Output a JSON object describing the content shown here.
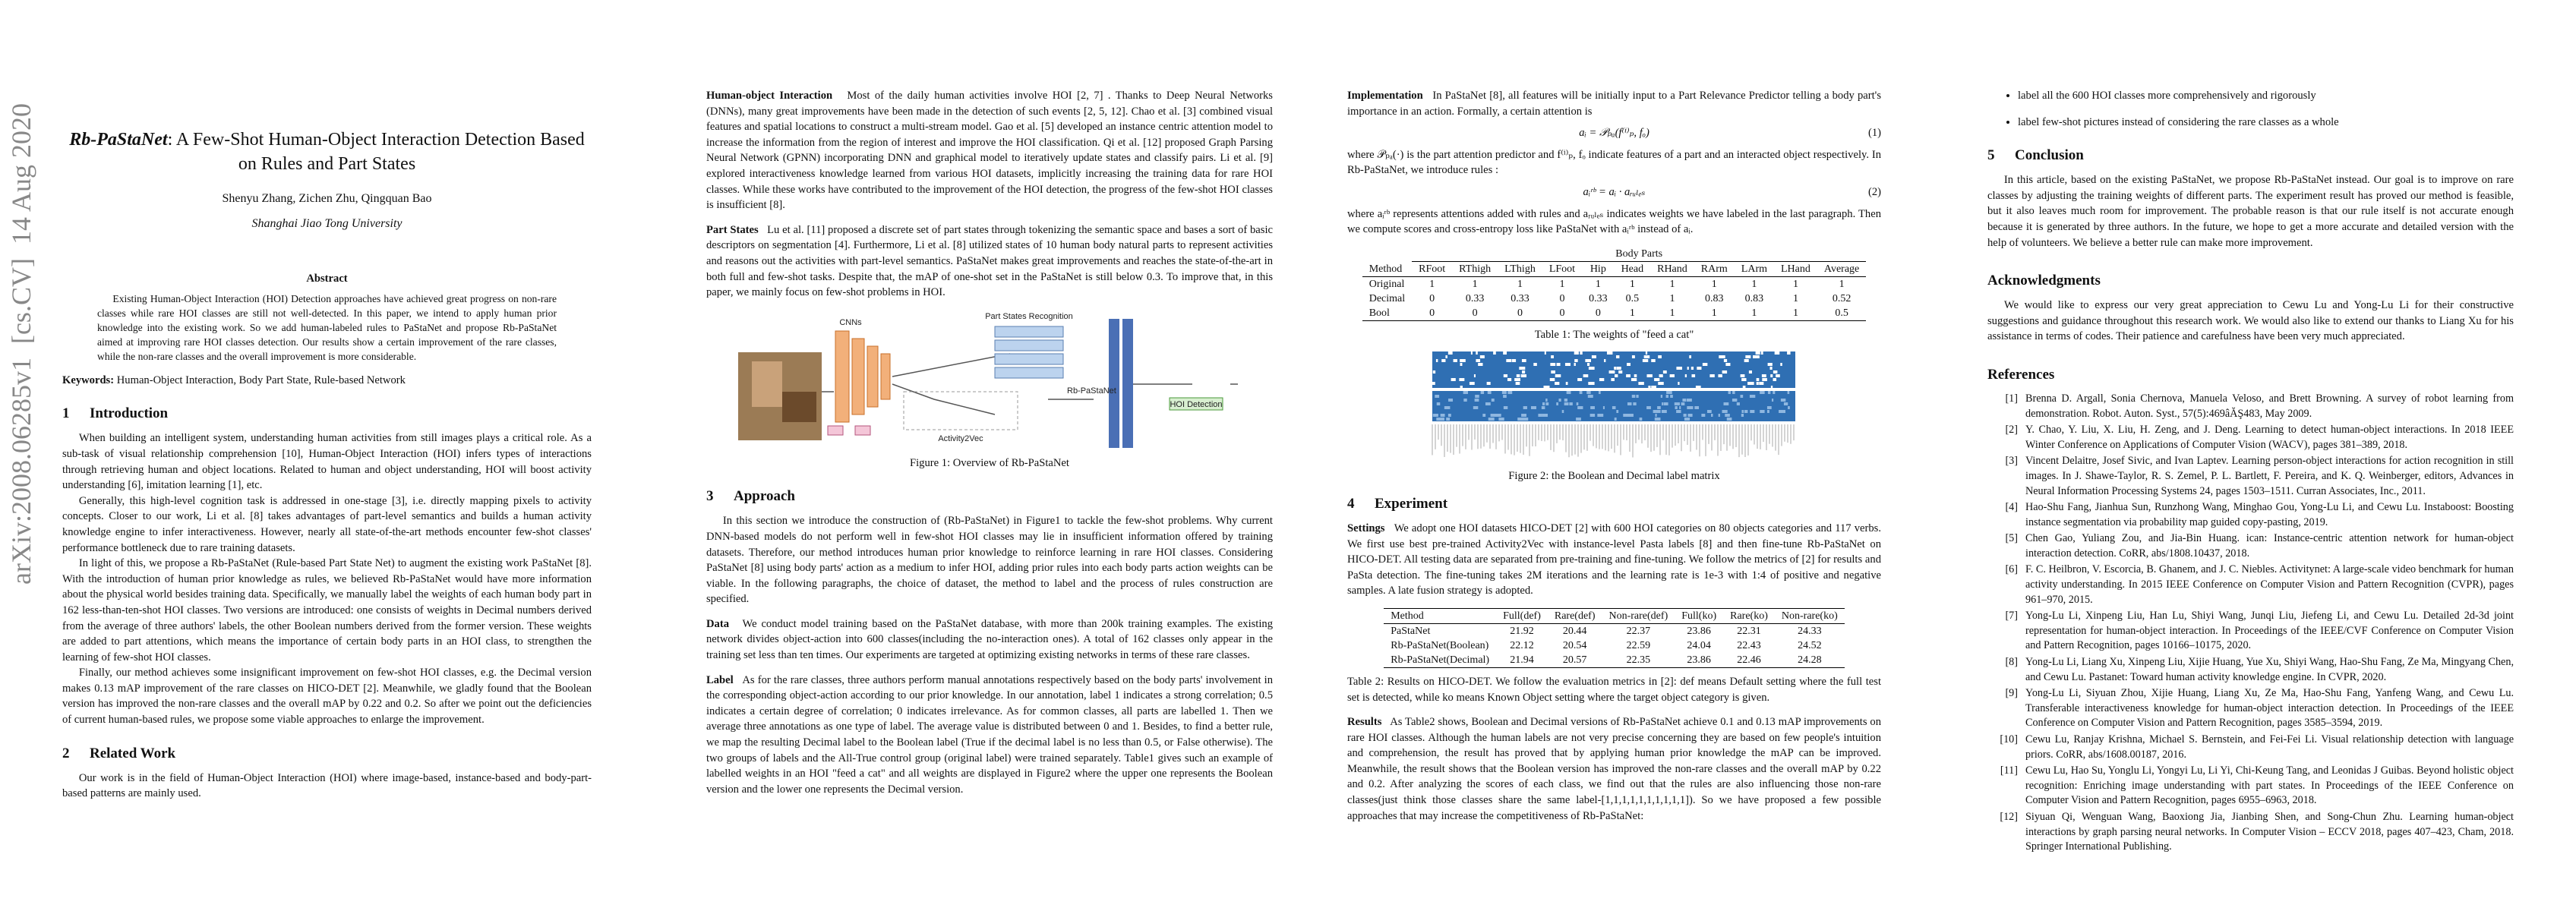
{
  "arxiv_id": "arXiv:2008.06285v1  [cs.CV]  14 Aug 2020",
  "header": {
    "title_name": "Rb-PaStaNet",
    "title_rest": ": A Few-Shot Human-Object Interaction Detection Based on Rules and Part States",
    "authors": "Shenyu Zhang, Zichen Zhu, Qingquan Bao",
    "affiliation": "Shanghai Jiao Tong University"
  },
  "abstract": {
    "heading": "Abstract",
    "text": "Existing Human-Object Interaction (HOI) Detection approaches have achieved great progress on non-rare classes while rare HOI classes are still not well-detected. In this paper, we intend to apply human prior knowledge into the existing work. So we add human-labeled rules to PaStaNet and propose Rb-PaStaNet aimed at improving rare HOI classes detection. Our results show a certain improvement of the rare classes, while the non-rare classes and the overall improvement is more considerable."
  },
  "keywords": {
    "label": "Keywords:",
    "text": "Human-Object Interaction, Body Part State, Rule-based Network"
  },
  "intro": {
    "number": "1",
    "title": "Introduction",
    "paragraphs": [
      "When building an intelligent system, understanding human activities from still images plays a critical role. As a sub-task of visual relationship comprehension [10], Human-Object Interaction (HOI) infers types of interactions through retrieving human and object locations. Related to human and object understanding, HOI will boost activity understanding [6], imitation learning [1], etc.",
      "Generally, this high-level cognition task is addressed in one-stage [3], i.e. directly mapping pixels to activity concepts. Closer to our work, Li et al. [8] takes advantages of part-level semantics and builds a human activity knowledge engine to infer interactiveness. However, nearly all state-of-the-art methods encounter few-shot classes' performance bottleneck due to rare training datasets.",
      "In light of this, we propose a Rb-PaStaNet (Rule-based Part State Net) to augment the existing work PaStaNet [8]. With the introduction of human prior knowledge as rules, we believed Rb-PaStaNet would have more information about the physical world besides training data. Specifically, we manually label the weights of each human body part in 162 less-than-ten-shot HOI classes. Two versions are introduced: one consists of weights in Decimal numbers derived from the average of three authors' labels, the other Boolean numbers derived from the former version. These weights are added to part attentions, which means the importance of certain body parts in an HOI class, to strengthen the learning of few-shot HOI classes.",
      "Finally, our method achieves some insignificant improvement on few-shot HOI classes, e.g. the Decimal version makes 0.13 mAP improvement of the rare classes on HICO-DET [2]. Meanwhile, we gladly found that the Boolean version has improved the non-rare classes and the overall mAP by 0.22 and 0.2. So after we point out the deficiencies of current human-based rules, we propose some viable approaches to enlarge the improvement."
    ]
  },
  "related": {
    "number": "2",
    "title": "Related Work",
    "intro": "Our work is in the field of Human-Object Interaction (HOI) where image-based, instance-based and body-part-based patterns are mainly used.",
    "hoi": {
      "lead": "Human-object Interaction",
      "text": "Most of the daily human activities involve HOI [2, 7] . Thanks to Deep Neural Networks (DNNs), many great improvements have been made in the detection of such events [2, 5, 12]. Chao et al. [3] combined visual features and spatial locations to construct a multi-stream model. Gao et al. [5] developed an instance centric attention model to increase the information from the region of interest and improve the HOI classification. Qi et al. [12] proposed Graph Parsing Neural Network (GPNN) incorporating DNN and graphical model to iteratively update states and classify pairs. Li et al. [9] explored interactiveness knowledge learned from various HOI datasets, implicitly increasing the training data for rare HOI classes. While these works have contributed to the improvement of the HOI detection, the progress of the few-shot HOI classes is insufficient [8]."
    },
    "part_states": {
      "lead": "Part States",
      "text": "Lu et al. [11] proposed a discrete set of part states through tokenizing the semantic space and bases a sort of basic descriptors on segmentation [4]. Furthermore, Li et al. [8] utilized states of 10 human body natural parts to represent activities and reasons out the activities with part-level semantics. PaStaNet makes great improvements and reaches the state-of-the-art in both full and few-shot tasks. Despite that, the mAP of one-shot set in the PaStaNet is still below 0.3. To improve that, in this paper, we mainly focus on few-shot problems in HOI."
    }
  },
  "figure1": {
    "labels": [
      "CNNs",
      "Part States Recognition",
      "Rb-PaStaNet",
      "HOI Detection",
      "Activity2Vec"
    ],
    "caption": "Figure 1: Overview of Rb-PaStaNet"
  },
  "approach": {
    "number": "3",
    "title": "Approach",
    "intro": "In this section we introduce the construction of (Rb-PaStaNet) in Figure1 to tackle the few-shot problems. Why current DNN-based models do not perform well in few-shot HOI classes may lie in insufficient information offered by training datasets. Therefore, our method introduces human prior knowledge to reinforce learning in rare HOI classes. Considering PaStaNet [8] using body parts' action as a medium to infer HOI, adding prior rules into each body parts action weights can be viable. In the following paragraphs, the choice of dataset, the method to label and the process of rules construction are specified.",
    "data": {
      "lead": "Data",
      "text": "We conduct model training based on the PaStaNet database, with more than 200k training examples. The existing network divides object-action into 600 classes(including the no-interaction ones). A total of 162 classes only appear in the training set less than ten times. Our experiments are targeted at optimizing existing networks in terms of these rare classes."
    },
    "label": {
      "lead": "Label",
      "text": "As for the rare classes, three authors perform manual annotations respectively based on the body parts' involvement in the corresponding object-action according to our prior knowledge. In our annotation, label 1 indicates a strong correlation; 0.5 indicates a certain degree of correlation; 0 indicates irrelevance. As for common classes, all parts are labelled 1. Then we average three annotations as one type of label. The average value is distributed between 0 and 1. Besides, to find a better rule, we map the resulting Decimal label to the Boolean label (True if the decimal label is no less than 0.5, or False otherwise). The two groups of labels and the All-True control group (original label) were trained separately. Table1 gives such an example of labelled weights in an HOI \"feed a cat\" and all weights are displayed in Figure2 where the upper one represents the Boolean version and the lower one represents the Decimal version."
    },
    "implementation": {
      "lead": "Implementation",
      "text": "In PaStaNet [8], all features will be initially input to a Part Relevance Predictor telling a body part's importance in an action. Formally, a certain attention is"
    },
    "equation1": {
      "formula": "aᵢ = 𝒫ₚₐ(f⁽ⁱ⁾ₚ, fₒ)",
      "number": "(1)"
    },
    "after_eq1": "where 𝒫ₚₐ(·) is the part attention predictor and f⁽ⁱ⁾ₚ, fₒ indicate features of a part and an interacted object respectively. In Rb-PaStaNet, we introduce rules :",
    "equation2": {
      "formula": "aᵢʳᵇ = aᵢ · aᵣᵤₗₑₛ",
      "number": "(2)"
    },
    "after_eq2": "where aᵢʳᵇ represents attentions added with rules and aᵣᵤₗₑₛ indicates weights we have labeled in the last paragraph. Then we compute scores and cross-entropy loss like PaStaNet with aᵢʳᵇ instead of aᵢ."
  },
  "table1": {
    "group_header": "Body Parts",
    "columns": [
      "Method",
      "RFoot",
      "RThigh",
      "LThigh",
      "LFoot",
      "Hip",
      "Head",
      "RHand",
      "RArm",
      "LArm",
      "LHand",
      "Average"
    ],
    "rows": [
      {
        "label": "Original",
        "values": [
          1,
          1,
          1,
          1,
          1,
          1,
          1,
          1,
          1,
          1,
          1
        ]
      },
      {
        "label": "Decimal",
        "values": [
          0,
          0.33,
          0.33,
          0,
          0.33,
          0.5,
          1,
          0.83,
          0.83,
          1,
          0.52
        ]
      },
      {
        "label": "Bool",
        "values": [
          0,
          0,
          0,
          0,
          0,
          1,
          1,
          1,
          1,
          1,
          0.5
        ]
      }
    ],
    "caption": "Table 1: The weights of \"feed a cat\""
  },
  "figure2": {
    "caption": "Figure 2: the Boolean and Decimal label matrix"
  },
  "experiment": {
    "number": "4",
    "title": "Experiment",
    "settings": {
      "lead": "Settings",
      "text": "We adopt one HOI datasets HICO-DET [2] with 600 HOI categories on 80 objects categories and 117 verbs. We first use best pre-trained Activity2Vec with instance-level Pasta labels [8] and then fine-tune Rb-PaStaNet on HICO-DET. All testing data are separated from pre-training and fine-tuning. We follow the metrics of [2] for results and PaSta detection. The fine-tuning takes 2M iterations and the learning rate is 1e-3 with 1:4 of positive and negative samples. A late fusion strategy is adopted."
    },
    "results": {
      "lead": "Results",
      "text": "As Table2 shows, Boolean and Decimal versions of Rb-PaStaNet achieve 0.1 and 0.13 mAP improvements on rare HOI classes. Although the human labels are not very precise concerning they are based on few people's intuition and comprehension, the result has proved that by applying human prior knowledge the mAP can be improved. Meanwhile, the result shows that the Boolean version has improved the non-rare classes and the overall mAP by 0.22 and 0.2. After analyzing the scores of each class, we find out that the rules are also influencing those non-rare classes(just think those classes share the same label-[1,1,1,1,1,1,1,1,1,1]). So we have proposed a few possible approaches that may increase the competitiveness of Rb-PaStaNet:"
    },
    "bullets": [
      "label all the 600 HOI classes more comprehensively and rigorously",
      "label few-shot pictures instead of considering the rare classes as a whole"
    ]
  },
  "table2": {
    "columns": [
      "Method",
      "Full(def)",
      "Rare(def)",
      "Non-rare(def)",
      "Full(ko)",
      "Rare(ko)",
      "Non-rare(ko)"
    ],
    "rows": [
      {
        "label": "PaStaNet",
        "values": [
          21.92,
          20.44,
          22.37,
          23.86,
          22.31,
          24.33
        ]
      },
      {
        "label": "Rb-PaStaNet(Boolean)",
        "values": [
          22.12,
          20.54,
          22.59,
          24.04,
          22.43,
          24.52
        ]
      },
      {
        "label": "Rb-PaStaNet(Decimal)",
        "values": [
          21.94,
          20.57,
          22.35,
          23.86,
          22.46,
          24.28
        ]
      }
    ],
    "caption": "Table 2: Results on HICO-DET. We follow the evaluation metrics in [2]: def means Default setting where the full test set is detected, while ko means Known Object setting where the target object category is given."
  },
  "conclusion": {
    "number": "5",
    "title": "Conclusion",
    "text": "In this article, based on the existing PaStaNet, we propose Rb-PaStaNet instead. Our goal is to improve on rare classes by adjusting the training weights of different parts. The experiment result has proved our method is feasible, but it also leaves much room for improvement. The probable reason is that our rule itself is not accurate enough because it is generated by three authors. In the future, we hope to get a more accurate and detailed version with the help of volunteers. We believe a better rule can make more improvement."
  },
  "acknowledgments": {
    "title": "Acknowledgments",
    "text": "We would like to express our very great appreciation to Cewu Lu and Yong-Lu Li for their constructive suggestions and guidance throughout this research work. We would also like to extend our thanks to Liang Xu for his assistance in terms of codes. Their patience and carefulness have been very much appreciated."
  },
  "references": {
    "title": "References",
    "items": [
      {
        "label": "[1]",
        "text": "Brenna D. Argall, Sonia Chernova, Manuela Veloso, and Brett Browning. A survey of robot learning from demonstration. Robot. Auton. Syst., 57(5):469âĂŞ483, May 2009."
      },
      {
        "label": "[2]",
        "text": "Y. Chao, Y. Liu, X. Liu, H. Zeng, and J. Deng. Learning to detect human-object interactions. In 2018 IEEE Winter Conference on Applications of Computer Vision (WACV), pages 381–389, 2018."
      },
      {
        "label": "[3]",
        "text": "Vincent Delaitre, Josef Sivic, and Ivan Laptev. Learning person-object interactions for action recognition in still images. In J. Shawe-Taylor, R. S. Zemel, P. L. Bartlett, F. Pereira, and K. Q. Weinberger, editors, Advances in Neural Information Processing Systems 24, pages 1503–1511. Curran Associates, Inc., 2011."
      },
      {
        "label": "[4]",
        "text": "Hao-Shu Fang, Jianhua Sun, Runzhong Wang, Minghao Gou, Yong-Lu Li, and Cewu Lu. Instaboost: Boosting instance segmentation via probability map guided copy-pasting, 2019."
      },
      {
        "label": "[5]",
        "text": "Chen Gao, Yuliang Zou, and Jia-Bin Huang. ican: Instance-centric attention network for human-object interaction detection. CoRR, abs/1808.10437, 2018."
      },
      {
        "label": "[6]",
        "text": "F. C. Heilbron, V. Escorcia, B. Ghanem, and J. C. Niebles. Activitynet: A large-scale video benchmark for human activity understanding. In 2015 IEEE Conference on Computer Vision and Pattern Recognition (CVPR), pages 961–970, 2015."
      },
      {
        "label": "[7]",
        "text": "Yong-Lu Li, Xinpeng Liu, Han Lu, Shiyi Wang, Junqi Liu, Jiefeng Li, and Cewu Lu. Detailed 2d-3d joint representation for human-object interaction. In Proceedings of the IEEE/CVF Conference on Computer Vision and Pattern Recognition, pages 10166–10175, 2020."
      },
      {
        "label": "[8]",
        "text": "Yong-Lu Li, Liang Xu, Xinpeng Liu, Xijie Huang, Yue Xu, Shiyi Wang, Hao-Shu Fang, Ze Ma, Mingyang Chen, and Cewu Lu. Pastanet: Toward human activity knowledge engine. In CVPR, 2020."
      },
      {
        "label": "[9]",
        "text": "Yong-Lu Li, Siyuan Zhou, Xijie Huang, Liang Xu, Ze Ma, Hao-Shu Fang, Yanfeng Wang, and Cewu Lu. Transferable interactiveness knowledge for human-object interaction detection. In Proceedings of the IEEE Conference on Computer Vision and Pattern Recognition, pages 3585–3594, 2019."
      },
      {
        "label": "[10]",
        "text": "Cewu Lu, Ranjay Krishna, Michael S. Bernstein, and Fei-Fei Li. Visual relationship detection with language priors. CoRR, abs/1608.00187, 2016."
      },
      {
        "label": "[11]",
        "text": "Cewu Lu, Hao Su, Yonglu Li, Yongyi Lu, Li Yi, Chi-Keung Tang, and Leonidas J Guibas. Beyond holistic object recognition: Enriching image understanding with part states. In Proceedings of the IEEE Conference on Computer Vision and Pattern Recognition, pages 6955–6963, 2018."
      },
      {
        "label": "[12]",
        "text": "Siyuan Qi, Wenguan Wang, Baoxiong Jia, Jianbing Shen, and Song-Chun Zhu. Learning human-object interactions by graph parsing neural networks. In Computer Vision – ECCV 2018, pages 407–423, Cham, 2018. Springer International Publishing."
      }
    ]
  }
}
